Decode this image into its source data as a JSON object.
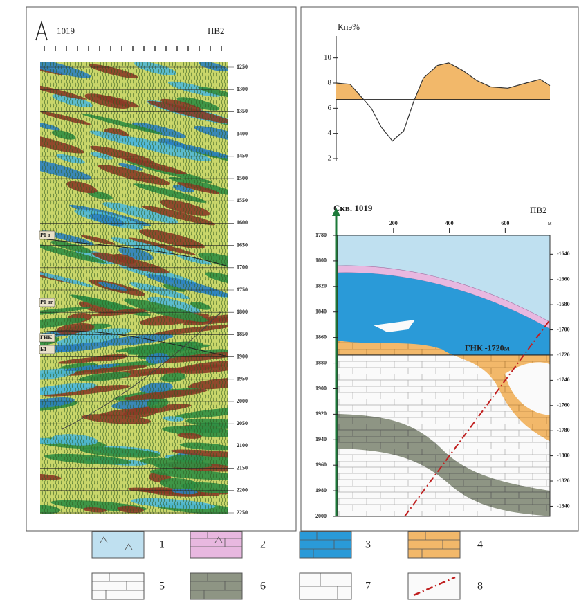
{
  "seismic": {
    "well": "1019",
    "profile": "ПВ2",
    "time_ticks": [
      1250,
      1300,
      1350,
      1400,
      1450,
      1500,
      1550,
      1600,
      1650,
      1700,
      1750,
      1800,
      1850,
      1900,
      1950,
      2000,
      2050,
      2100,
      2150,
      2200,
      2250
    ],
    "time_lim": [
      1250,
      2250
    ],
    "horizons": [
      "P1 a",
      "P1 ar",
      "ГНК",
      "Б1"
    ]
  },
  "kpe_chart": {
    "type": "line",
    "y_label": "Кпэ%",
    "ylim": [
      2,
      11
    ],
    "yticks": [
      2,
      4,
      6,
      8,
      10
    ],
    "baseline": 6.7,
    "xlim": [
      0,
      760
    ],
    "x": [
      0,
      50,
      125,
      160,
      200,
      240,
      275,
      310,
      360,
      400,
      450,
      500,
      550,
      610,
      675,
      725,
      760
    ],
    "values": [
      8.0,
      7.9,
      6.0,
      4.5,
      3.4,
      4.2,
      6.5,
      8.4,
      9.4,
      9.6,
      9.0,
      8.2,
      7.7,
      7.6,
      8.0,
      8.3,
      7.8
    ]
  },
  "section": {
    "well_label": "Скв. 1019",
    "profile": "ПВ2",
    "x_unit": "м",
    "xlim": [
      0,
      760
    ],
    "xticks": [
      200,
      400,
      600
    ],
    "depth_lim": [
      1780,
      2000
    ],
    "depth_ticks": [
      1780,
      1800,
      1820,
      1840,
      1860,
      1880,
      1900,
      1920,
      1940,
      1960,
      1980,
      2000
    ],
    "abs_lim": [
      -1625,
      -1848
    ],
    "abs_ticks": [
      -1640,
      -1660,
      -1680,
      -1700,
      -1720,
      -1740,
      -1760,
      -1780,
      -1800,
      -1820,
      -1840
    ],
    "gnk_label": "ГНК -1720м"
  },
  "legend": [
    "1",
    "2",
    "3",
    "4",
    "5",
    "6",
    "7",
    "8"
  ]
}
